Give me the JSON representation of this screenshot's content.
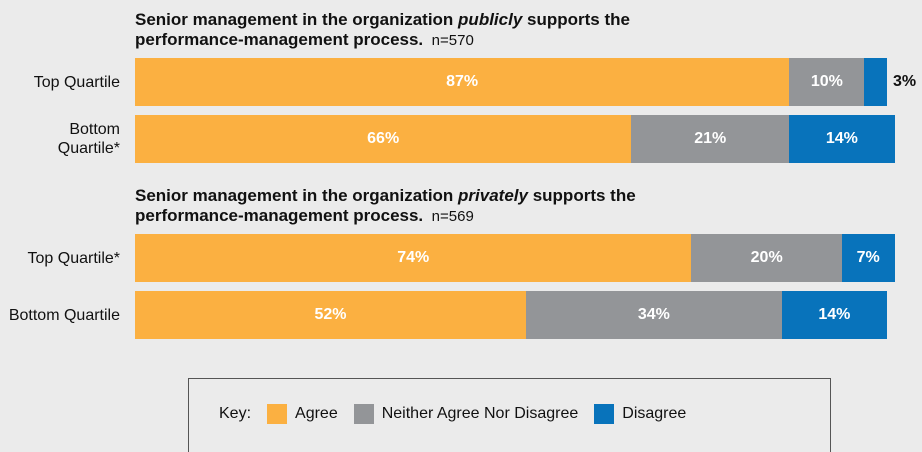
{
  "chart_data": [
    {
      "type": "stacked-bar-horizontal",
      "title": [
        "Senior management in the organization ",
        "publicly",
        " supports the performance-management process."
      ],
      "note": "n=570",
      "categories": [
        "Top Quartile",
        "Bottom Quartile*"
      ],
      "series": [
        {
          "name": "Agree",
          "color": "#fbb041",
          "values": [
            87,
            66
          ],
          "value_labels": [
            "87%",
            "66%"
          ]
        },
        {
          "name": "Neither Agree Nor Disagree",
          "color": "#939598",
          "values": [
            10,
            21
          ],
          "value_labels": [
            "10%",
            "21%"
          ]
        },
        {
          "name": "Disagree",
          "color": "#0873bb",
          "values": [
            3,
            14
          ],
          "value_labels": [
            "3%",
            "14%"
          ]
        }
      ]
    },
    {
      "type": "stacked-bar-horizontal",
      "title": [
        "Senior management in the organization ",
        "privately",
        " supports the performance-management process."
      ],
      "note": "n=569",
      "categories": [
        "Top Quartile*",
        "Bottom Quartile"
      ],
      "series": [
        {
          "name": "Agree",
          "color": "#fbb041",
          "values": [
            74,
            52
          ],
          "value_labels": [
            "74%",
            "52%"
          ]
        },
        {
          "name": "Neither Agree Nor Disagree",
          "color": "#939598",
          "values": [
            20,
            34
          ],
          "value_labels": [
            "20%",
            "34%"
          ]
        },
        {
          "name": "Disagree",
          "color": "#0873bb",
          "values": [
            7,
            14
          ],
          "value_labels": [
            "7%",
            "14%"
          ]
        }
      ]
    }
  ],
  "legend": {
    "title": "Key:"
  }
}
